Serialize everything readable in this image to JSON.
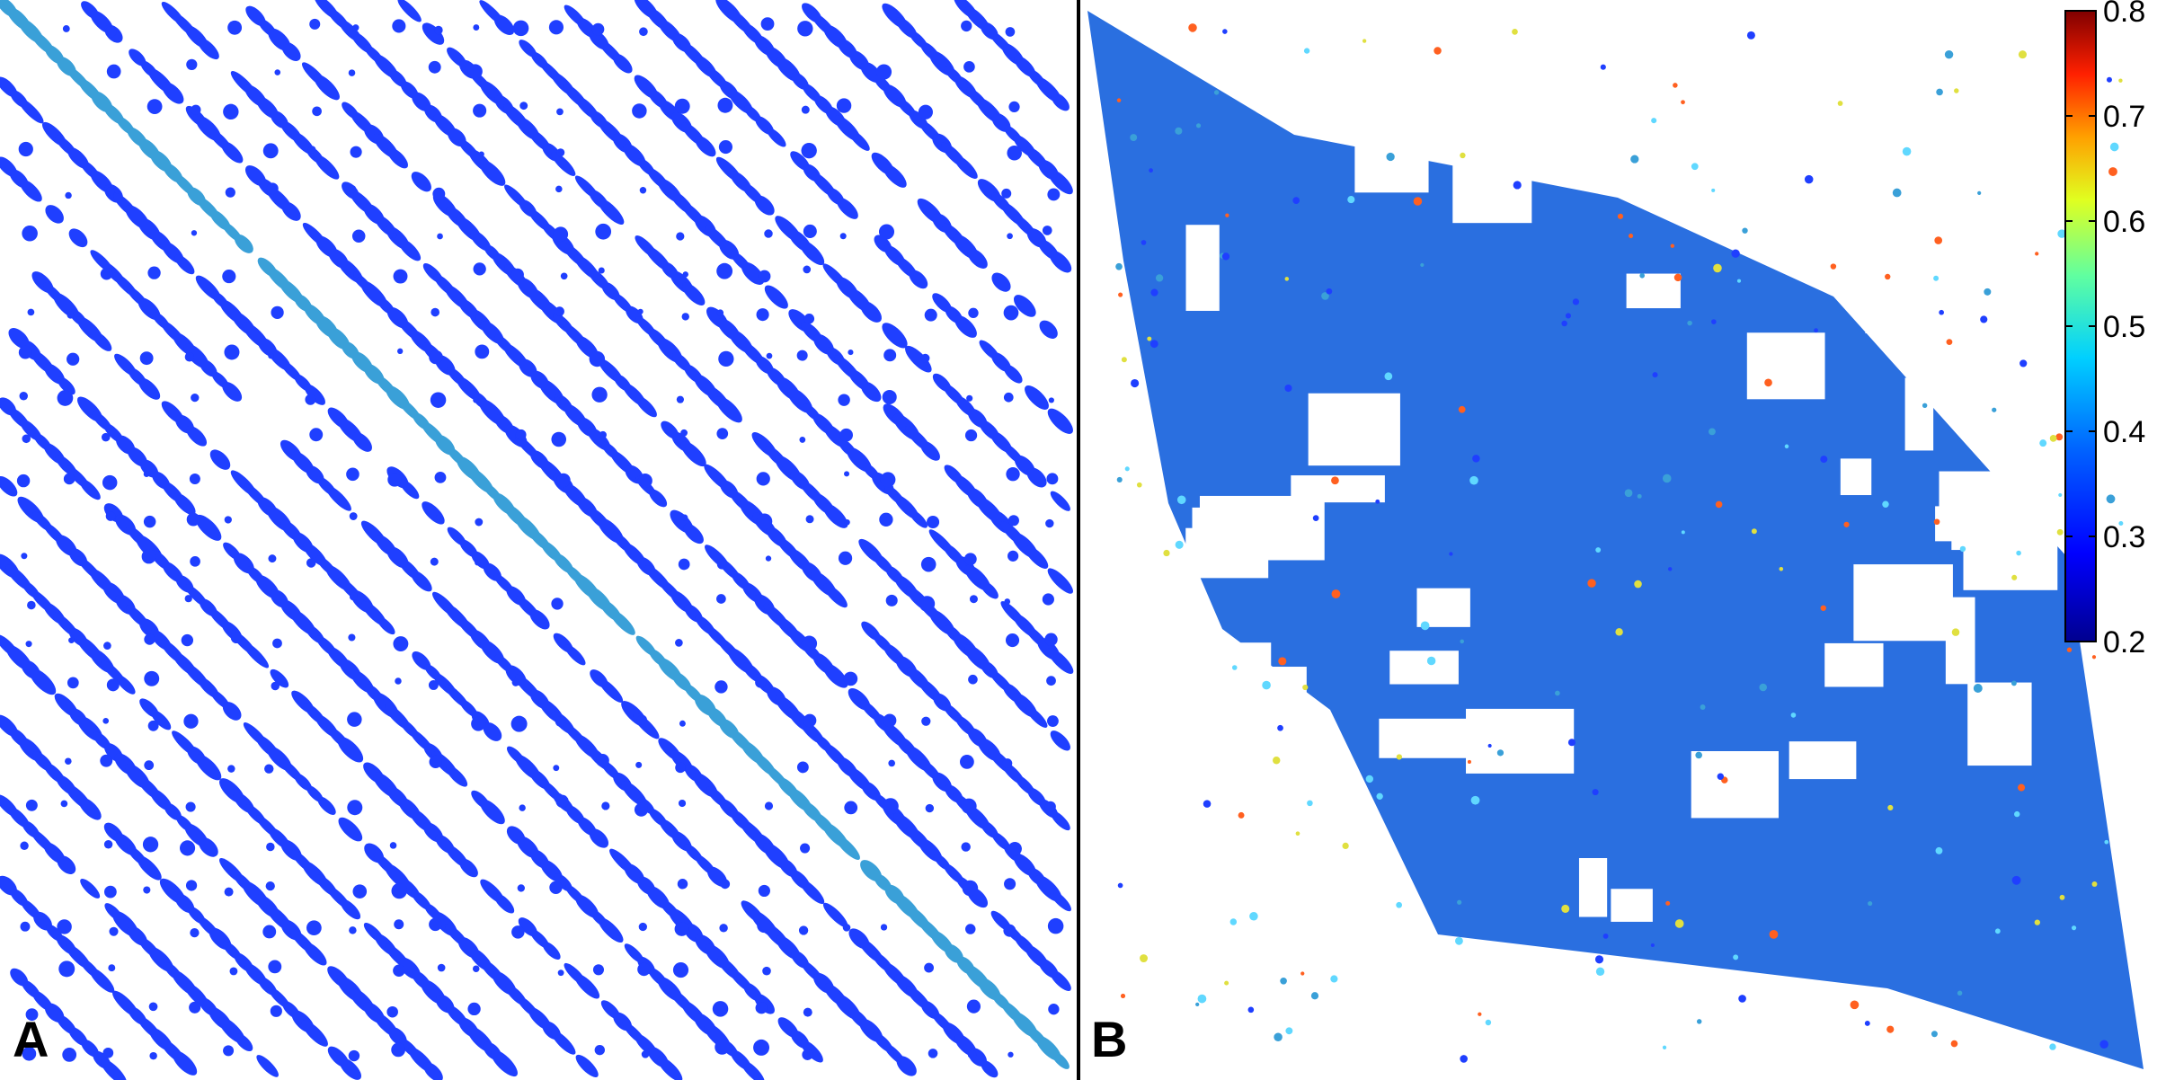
{
  "figure": {
    "panels": [
      {
        "letter": "A"
      },
      {
        "letter": "B"
      }
    ]
  },
  "colors": {
    "background": "#ffffff",
    "divider": "#000000",
    "contact_base": "#1f3fff",
    "contact_mid": "#2a6fe0",
    "contact_high": "#3aa0d8",
    "colormap": [
      "#00008f",
      "#0000ff",
      "#0080ff",
      "#00ffff",
      "#80ff80",
      "#ffff00",
      "#ff8000",
      "#ff0000",
      "#800000"
    ]
  },
  "chart_data": [
    {
      "type": "heatmap",
      "panel": "A",
      "title": "",
      "xlabel": "",
      "ylabel": "",
      "description_values": {
        "diagonal_band_count": 13,
        "grid_divisions": 26
      }
    },
    {
      "type": "heatmap",
      "panel": "B",
      "title": "",
      "xlabel": "",
      "ylabel": "",
      "colorbar": {
        "ticks": [
          "0.8",
          "0.7",
          "0.6",
          "0.5",
          "0.4",
          "0.3",
          "0.2"
        ],
        "range": [
          0.2,
          0.8
        ],
        "colormap": "jet"
      }
    }
  ]
}
